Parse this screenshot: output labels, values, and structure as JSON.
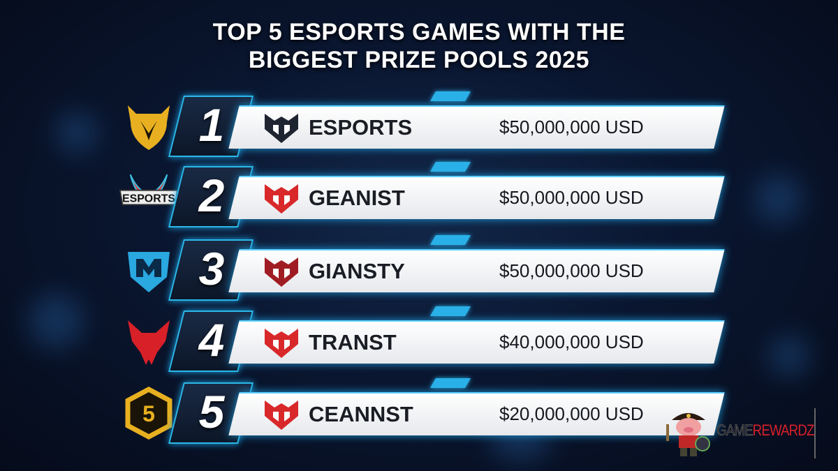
{
  "title_lines": [
    "TOP 5 ESPORTS GAMES WITH THE",
    "BIGGEST PRIZE POOLS 2025"
  ],
  "rows": [
    {
      "rank": "1",
      "game": "ESPORTS",
      "prize": "$50,000,000 USD",
      "badge": "gold-dragon-shield",
      "logo_color": "#1e2430"
    },
    {
      "rank": "2",
      "game": "GEANIST",
      "prize": "$50,000,000 USD",
      "badge": "esports-wings",
      "badge_text": "ESPORTS",
      "logo_color": "#d8282a"
    },
    {
      "rank": "3",
      "game": "GIANSTY",
      "prize": "$50,000,000 USD",
      "badge": "blue-m-shield",
      "logo_color": "#a01c24"
    },
    {
      "rank": "4",
      "game": "TRANST",
      "prize": "$40,000,000 USD",
      "badge": "red-wolf",
      "logo_color": "#d8282a"
    },
    {
      "rank": "5",
      "game": "CEANNST",
      "prize": "$20,000,000 USD",
      "badge": "gold-5-hexagon",
      "logo_color": "#d8282a"
    }
  ],
  "brand": {
    "part1": "GAME",
    "part2": "REWARDZ",
    "colors": {
      "part1": "#1a1a1a",
      "part2": "#d8202a"
    }
  },
  "colors": {
    "accent": "#2bb8e8",
    "gold": "#e8b020"
  }
}
